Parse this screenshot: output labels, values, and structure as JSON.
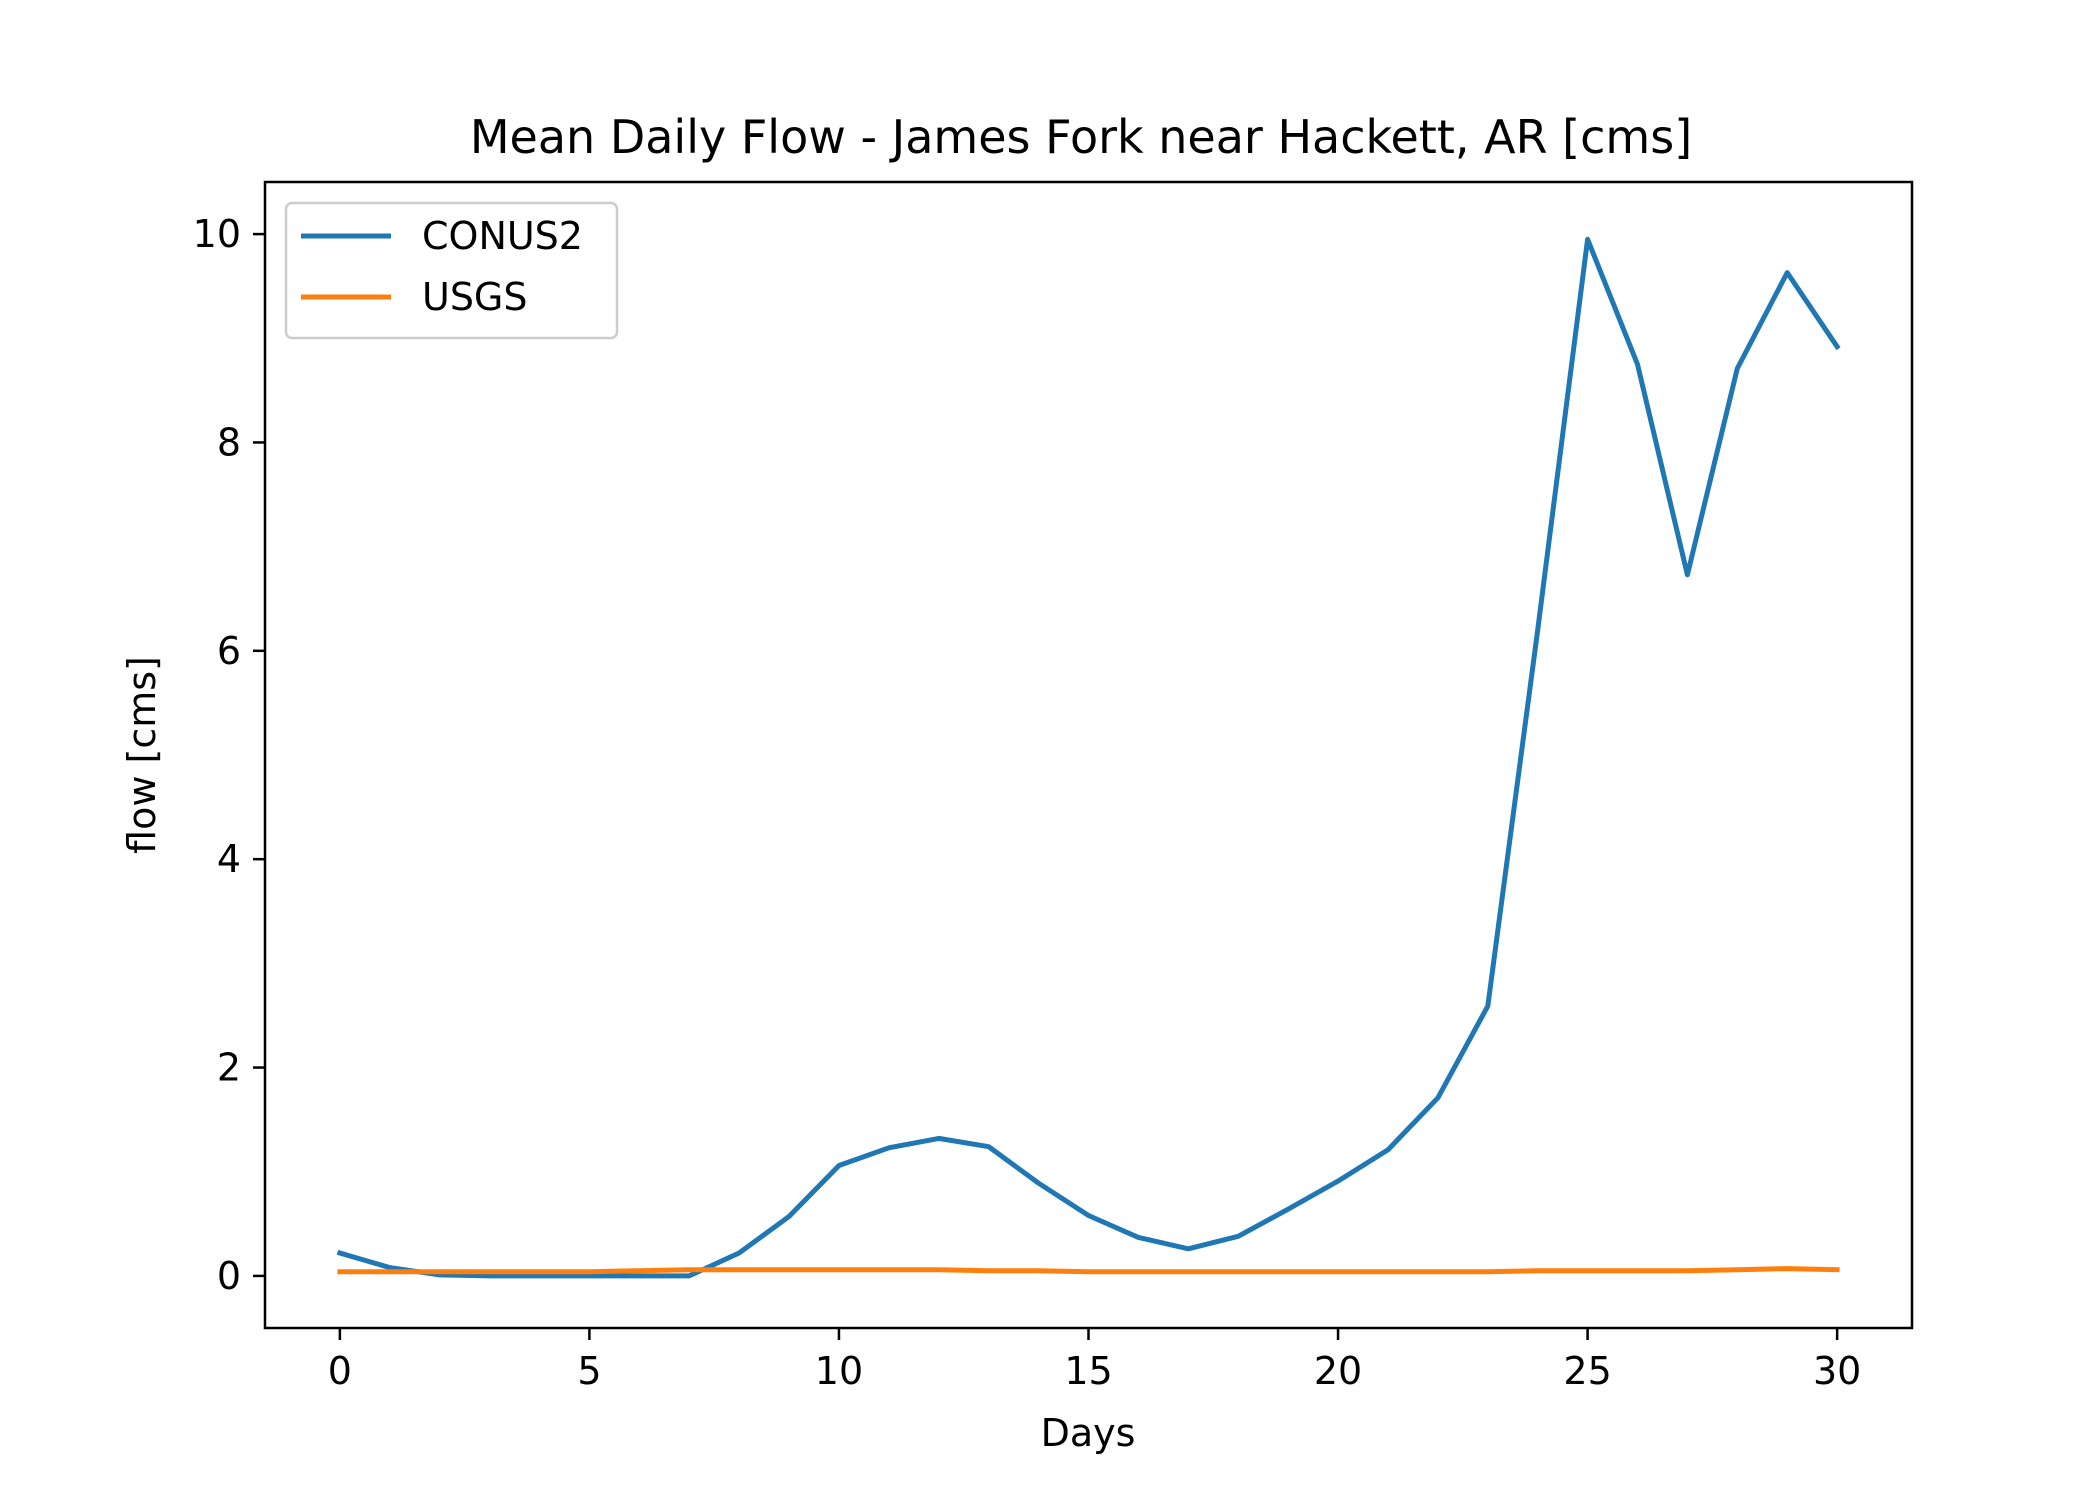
{
  "chart_data": {
    "type": "line",
    "title": "Mean Daily Flow - James Fork near Hackett, AR [cms]",
    "xlabel": "Days",
    "ylabel": "flow [cms]",
    "xlim": [
      -1.5,
      31.5
    ],
    "ylim": [
      -0.5,
      10.5
    ],
    "xticks": [
      0,
      5,
      10,
      15,
      20,
      25,
      30
    ],
    "yticks": [
      0,
      2,
      4,
      6,
      8,
      10
    ],
    "x": [
      0,
      1,
      2,
      3,
      4,
      5,
      6,
      7,
      8,
      9,
      10,
      11,
      12,
      13,
      14,
      15,
      16,
      17,
      18,
      19,
      20,
      21,
      22,
      23,
      24,
      25,
      26,
      27,
      28,
      29,
      30
    ],
    "series": [
      {
        "name": "CONUS2",
        "color": "#1f77b4",
        "values": [
          0.22,
          0.08,
          0.01,
          0.0,
          0.0,
          0.0,
          0.0,
          0.0,
          0.22,
          0.57,
          1.06,
          1.23,
          1.32,
          1.24,
          0.89,
          0.58,
          0.37,
          0.26,
          0.38,
          0.64,
          0.91,
          1.21,
          1.71,
          2.59,
          6.2,
          9.95,
          8.75,
          6.73,
          8.71,
          9.63,
          8.92
        ]
      },
      {
        "name": "USGS",
        "color": "#ff7f0e",
        "values": [
          0.04,
          0.04,
          0.04,
          0.04,
          0.04,
          0.04,
          0.05,
          0.06,
          0.06,
          0.06,
          0.06,
          0.06,
          0.06,
          0.05,
          0.05,
          0.04,
          0.04,
          0.04,
          0.04,
          0.04,
          0.04,
          0.04,
          0.04,
          0.04,
          0.05,
          0.05,
          0.05,
          0.05,
          0.06,
          0.07,
          0.06
        ]
      }
    ],
    "legend_position": "top-left",
    "grid": false
  }
}
